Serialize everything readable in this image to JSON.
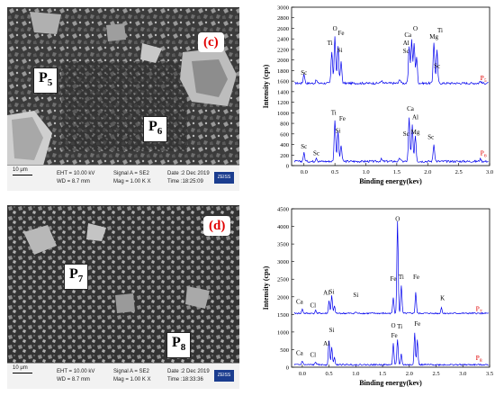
{
  "panels": [
    {
      "tag": "(c)",
      "sem_labels": [
        {
          "text": "P",
          "sub": "5"
        },
        {
          "text": "P",
          "sub": "6"
        }
      ],
      "scale": {
        "bar": "10 μm",
        "eht": "EHT = 10.00 kV",
        "wd": "WD = 8.7 mm",
        "signal": "Signal A = SE2",
        "mag": "Mag = 1.00 K X",
        "date": "Date :2 Dec 2019",
        "time": "Time :18:25:09",
        "logo": "ZEISS"
      },
      "chart_data": {
        "type": "line",
        "xlabel": "Binding energy(kev)",
        "ylabel": "Intensity (cps)",
        "xlim": [
          -0.2,
          3.0
        ],
        "ylim": [
          0,
          3000
        ],
        "xticks": [
          0.0,
          0.5,
          1.0,
          1.5,
          2.0,
          2.5,
          3.0
        ],
        "yticks": [
          0,
          200,
          400,
          600,
          800,
          1000,
          1200,
          1400,
          1600,
          1800,
          2000,
          2200,
          2400,
          2600,
          2800,
          3000
        ],
        "series": [
          {
            "name": "P5",
            "color": "#0000ee",
            "baseline": 1560,
            "peaks": [
              [
                0.0,
                180
              ],
              [
                0.2,
                60
              ],
              [
                0.45,
                600
              ],
              [
                0.5,
                880
              ],
              [
                0.55,
                700
              ],
              [
                0.6,
                400
              ],
              [
                1.25,
                50
              ],
              [
                1.55,
                80
              ],
              [
                1.7,
                700
              ],
              [
                1.74,
                820
              ],
              [
                1.78,
                760
              ],
              [
                1.82,
                500
              ],
              [
                2.1,
                780
              ],
              [
                2.15,
                620
              ],
              [
                2.85,
                40
              ]
            ],
            "labels": [
              {
                "text": "Sc",
                "x": 0.0,
                "y": 1720
              },
              {
                "text": "O",
                "x": 0.5,
                "y": 2560
              },
              {
                "text": "Fe",
                "x": 0.6,
                "y": 2470
              },
              {
                "text": "Ti",
                "x": 0.42,
                "y": 2280
              },
              {
                "text": "Si",
                "x": 0.58,
                "y": 2150
              },
              {
                "text": "Ca",
                "x": 1.68,
                "y": 2440
              },
              {
                "text": "O",
                "x": 1.8,
                "y": 2560
              },
              {
                "text": "Al",
                "x": 1.65,
                "y": 2280
              },
              {
                "text": "Sc",
                "x": 1.65,
                "y": 2130
              },
              {
                "text": "Ti",
                "x": 2.2,
                "y": 2520
              },
              {
                "text": "Mg",
                "x": 2.1,
                "y": 2400
              },
              {
                "text": "Sc",
                "x": 2.15,
                "y": 1850
              },
              {
                "text": "P",
                "sub": "5",
                "x": 2.9,
                "y": 1620,
                "red": true
              }
            ]
          },
          {
            "name": "P6",
            "color": "#0000ee",
            "baseline": 80,
            "peaks": [
              [
                0.0,
                160
              ],
              [
                0.2,
                70
              ],
              [
                0.5,
                780
              ],
              [
                0.55,
                560
              ],
              [
                0.6,
                300
              ],
              [
                1.25,
                40
              ],
              [
                1.55,
                60
              ],
              [
                1.7,
                820
              ],
              [
                1.75,
                680
              ],
              [
                1.8,
                500
              ],
              [
                2.1,
                320
              ],
              [
                2.85,
                50
              ]
            ],
            "labels": [
              {
                "text": "Sc",
                "x": 0.0,
                "y": 320
              },
              {
                "text": "Sc",
                "x": 0.2,
                "y": 200
              },
              {
                "text": "Ti",
                "x": 0.48,
                "y": 960
              },
              {
                "text": "Fe",
                "x": 0.62,
                "y": 850
              },
              {
                "text": "Si",
                "x": 0.55,
                "y": 620
              },
              {
                "text": "Ca",
                "x": 1.72,
                "y": 1040
              },
              {
                "text": "Al",
                "x": 1.8,
                "y": 880
              },
              {
                "text": "Sc",
                "x": 1.65,
                "y": 560
              },
              {
                "text": "Mg",
                "x": 1.8,
                "y": 600
              },
              {
                "text": "Sc",
                "x": 2.05,
                "y": 500
              },
              {
                "text": "P",
                "sub": "6",
                "x": 2.9,
                "y": 200,
                "red": true
              }
            ]
          }
        ]
      }
    },
    {
      "tag": "(d)",
      "sem_labels": [
        {
          "text": "P",
          "sub": "7"
        },
        {
          "text": "P",
          "sub": "8"
        }
      ],
      "scale": {
        "bar": "10 μm",
        "eht": "EHT = 10.00 kV",
        "wd": "WD = 8.7 mm",
        "signal": "Signal A = SE2",
        "mag": "Mag = 1.00 K X",
        "date": "Date :2 Dec 2019",
        "time": "Time :18:33:36",
        "logo": "ZEISS"
      },
      "chart_data": {
        "type": "line",
        "xlabel": "Binding energy(kev)",
        "ylabel": "Intensity (cps)",
        "xlim": [
          -0.2,
          3.5
        ],
        "ylim": [
          0,
          4500
        ],
        "xticks": [
          0.0,
          0.5,
          1.0,
          1.5,
          2.0,
          2.5,
          3.0,
          3.5
        ],
        "yticks": [
          0,
          500,
          1000,
          1500,
          2000,
          2500,
          3000,
          3500,
          4000,
          4500
        ],
        "series": [
          {
            "name": "P7",
            "color": "#0000ee",
            "baseline": 1530,
            "peaks": [
              [
                0.0,
                120
              ],
              [
                0.25,
                80
              ],
              [
                0.5,
                350
              ],
              [
                0.55,
                500
              ],
              [
                0.6,
                200
              ],
              [
                1.0,
                40
              ],
              [
                1.7,
                450
              ],
              [
                1.78,
                2600
              ],
              [
                1.85,
                800
              ],
              [
                2.12,
                600
              ],
              [
                2.6,
                160
              ]
            ],
            "labels": [
              {
                "text": "Ca",
                "x": -0.05,
                "y": 1800
              },
              {
                "text": "Cl",
                "x": 0.2,
                "y": 1700
              },
              {
                "text": "Al",
                "x": 0.45,
                "y": 2060
              },
              {
                "text": "Si",
                "x": 0.55,
                "y": 2080
              },
              {
                "text": "Si",
                "x": 1.0,
                "y": 2000
              },
              {
                "text": "O",
                "x": 1.78,
                "y": 4150
              },
              {
                "text": "Fe",
                "x": 1.7,
                "y": 2450
              },
              {
                "text": "Ti",
                "x": 1.85,
                "y": 2500
              },
              {
                "text": "Fe",
                "x": 2.13,
                "y": 2500
              },
              {
                "text": "K",
                "x": 2.62,
                "y": 1900
              },
              {
                "text": "P",
                "sub": "7",
                "x": 3.3,
                "y": 1600,
                "red": true
              }
            ]
          },
          {
            "name": "P8",
            "color": "#0000ee",
            "baseline": 70,
            "peaks": [
              [
                0.0,
                110
              ],
              [
                0.25,
                80
              ],
              [
                0.5,
                700
              ],
              [
                0.55,
                500
              ],
              [
                0.6,
                200
              ],
              [
                1.7,
                600
              ],
              [
                1.78,
                700
              ],
              [
                1.85,
                300
              ],
              [
                2.1,
                900
              ],
              [
                2.15,
                700
              ]
            ],
            "labels": [
              {
                "text": "Ca",
                "x": -0.05,
                "y": 350
              },
              {
                "text": "Cl",
                "x": 0.2,
                "y": 300
              },
              {
                "text": "Al",
                "x": 0.45,
                "y": 620
              },
              {
                "text": "Si",
                "x": 0.55,
                "y": 1000
              },
              {
                "text": "O",
                "x": 1.7,
                "y": 1120
              },
              {
                "text": "Ti",
                "x": 1.82,
                "y": 1100
              },
              {
                "text": "Fe",
                "x": 1.72,
                "y": 850
              },
              {
                "text": "Fe",
                "x": 2.15,
                "y": 1170
              },
              {
                "text": "P",
                "sub": "8",
                "x": 3.3,
                "y": 200,
                "red": true
              }
            ]
          }
        ]
      }
    }
  ]
}
